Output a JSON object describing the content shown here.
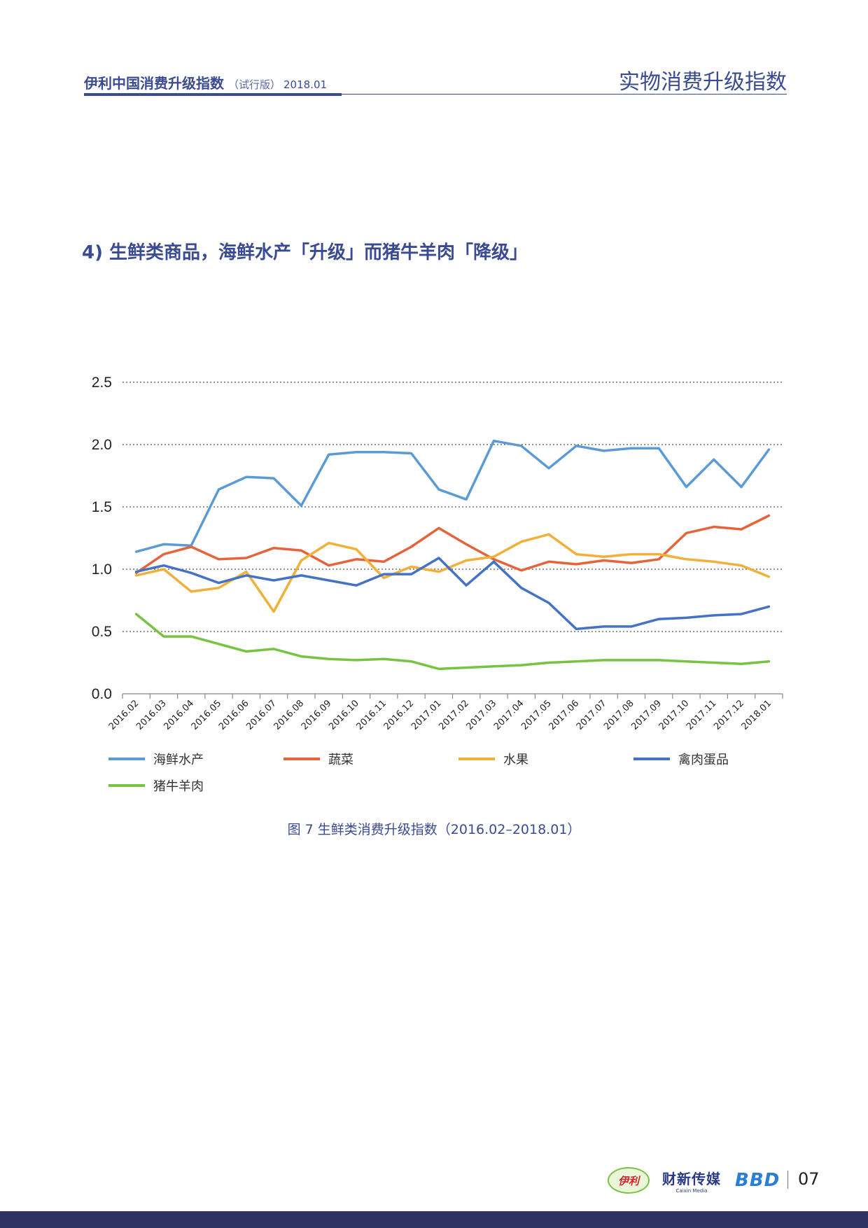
{
  "header": {
    "brand": "伊利中国消费升级指数",
    "edition": "（试行版）",
    "date": "2018.01",
    "section": "实物消费升级指数"
  },
  "section_title": "4) 生鲜类商品，海鲜水产「升级」而猪牛羊肉「降级」",
  "caption": "图 7  生鲜类消费升级指数（2016.02–2018.01）",
  "footer": {
    "logo_yili": "伊利",
    "logo_caixin": "财新传媒",
    "logo_caixin_sub": "Caixin Media",
    "logo_bbd": "BBD",
    "page": "07"
  },
  "chart_data": {
    "type": "line",
    "categories": [
      "2016.02",
      "2016.03",
      "2016.04",
      "2016.05",
      "2016.06",
      "2016.07",
      "2016.08",
      "2016.09",
      "2016.10",
      "2016.11",
      "2016.12",
      "2017.01",
      "2017.02",
      "2017.03",
      "2017.04",
      "2017.05",
      "2017.06",
      "2017.07",
      "2017.08",
      "2017.09",
      "2017.10",
      "2017.11",
      "2017.12",
      "2018.01"
    ],
    "ylim": [
      0,
      2.5
    ],
    "yticks": [
      "0.0",
      "0.5",
      "1.0",
      "1.5",
      "2.0",
      "2.5"
    ],
    "grid": true,
    "legend_position": "bottom",
    "series": [
      {
        "name": "海鲜水产",
        "color": "#5b9bd5",
        "values": [
          1.14,
          1.2,
          1.19,
          1.64,
          1.74,
          1.73,
          1.51,
          1.92,
          1.94,
          1.94,
          1.93,
          1.64,
          1.56,
          2.03,
          1.99,
          1.81,
          1.99,
          1.95,
          1.97,
          1.97,
          1.66,
          1.88,
          1.66,
          1.96
        ]
      },
      {
        "name": "蔬菜",
        "color": "#e4653c",
        "values": [
          0.97,
          1.12,
          1.18,
          1.08,
          1.09,
          1.17,
          1.15,
          1.03,
          1.08,
          1.06,
          1.18,
          1.33,
          1.2,
          1.08,
          0.99,
          1.06,
          1.04,
          1.07,
          1.05,
          1.08,
          1.29,
          1.34,
          1.32,
          1.43
        ]
      },
      {
        "name": "水果",
        "color": "#f0b03a",
        "values": [
          0.95,
          1.0,
          0.82,
          0.85,
          0.98,
          0.66,
          1.07,
          1.21,
          1.16,
          0.93,
          1.02,
          0.98,
          1.07,
          1.1,
          1.22,
          1.28,
          1.12,
          1.1,
          1.12,
          1.12,
          1.08,
          1.06,
          1.03,
          0.94
        ]
      },
      {
        "name": "禽肉蛋品",
        "color": "#4472c4",
        "values": [
          0.98,
          1.03,
          0.97,
          0.89,
          0.95,
          0.91,
          0.95,
          0.91,
          0.87,
          0.96,
          0.96,
          1.09,
          0.87,
          1.06,
          0.85,
          0.73,
          0.52,
          0.54,
          0.54,
          0.6,
          0.61,
          0.63,
          0.64,
          0.7
        ]
      },
      {
        "name": "猪牛羊肉",
        "color": "#76c442",
        "values": [
          0.64,
          0.46,
          0.46,
          0.4,
          0.34,
          0.36,
          0.3,
          0.28,
          0.27,
          0.28,
          0.26,
          0.2,
          0.21,
          0.22,
          0.23,
          0.25,
          0.26,
          0.27,
          0.27,
          0.27,
          0.26,
          0.25,
          0.24,
          0.26
        ]
      }
    ]
  }
}
